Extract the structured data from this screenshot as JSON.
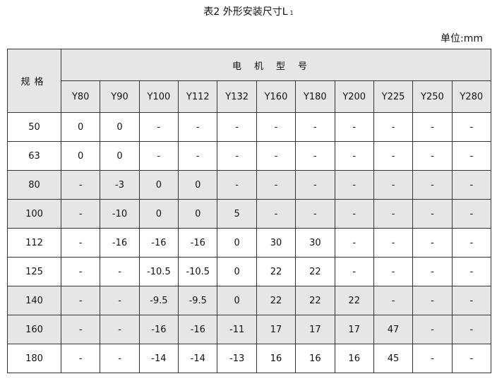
{
  "title": "表2 外形安装尺寸L",
  "title_sub": "1",
  "unit": "单位:mm",
  "header": {
    "spec": "规格",
    "motor": "电机型号",
    "models": [
      "Y80",
      "Y90",
      "Y100",
      "Y112",
      "Y132",
      "Y160",
      "Y180",
      "Y200",
      "Y225",
      "Y250",
      "Y280"
    ]
  },
  "rows": [
    {
      "spec": "50",
      "shaded": false,
      "values": [
        "0",
        "0",
        "-",
        "-",
        "-",
        "-",
        "-",
        "-",
        "-",
        "-",
        "-"
      ]
    },
    {
      "spec": "63",
      "shaded": false,
      "values": [
        "0",
        "0",
        "-",
        "-",
        "-",
        "-",
        "-",
        "-",
        "-",
        "-",
        "-"
      ]
    },
    {
      "spec": "80",
      "shaded": true,
      "values": [
        "-",
        "-3",
        "0",
        "0",
        "-",
        "-",
        "-",
        "-",
        "-",
        "-",
        "-"
      ]
    },
    {
      "spec": "100",
      "shaded": true,
      "values": [
        "-",
        "-10",
        "0",
        "0",
        "5",
        "-",
        "-",
        "-",
        "-",
        "-",
        "-"
      ]
    },
    {
      "spec": "112",
      "shaded": false,
      "values": [
        "-",
        "-16",
        "-16",
        "-16",
        "0",
        "30",
        "30",
        "-",
        "-",
        "-",
        "-"
      ]
    },
    {
      "spec": "125",
      "shaded": false,
      "values": [
        "-",
        "-",
        "-10.5",
        "-10.5",
        "0",
        "22",
        "22",
        "-",
        "-",
        "-",
        "-"
      ]
    },
    {
      "spec": "140",
      "shaded": true,
      "values": [
        "-",
        "-",
        "-9.5",
        "-9.5",
        "0",
        "22",
        "22",
        "22",
        "-",
        "-",
        "-"
      ]
    },
    {
      "spec": "160",
      "shaded": true,
      "values": [
        "-",
        "-",
        "-16",
        "-16",
        "-11",
        "17",
        "17",
        "17",
        "47",
        "-",
        "-"
      ]
    },
    {
      "spec": "180",
      "shaded": false,
      "values": [
        "-",
        "-",
        "-14",
        "-14",
        "-13",
        "16",
        "16",
        "16",
        "45",
        "-",
        "-"
      ]
    }
  ]
}
